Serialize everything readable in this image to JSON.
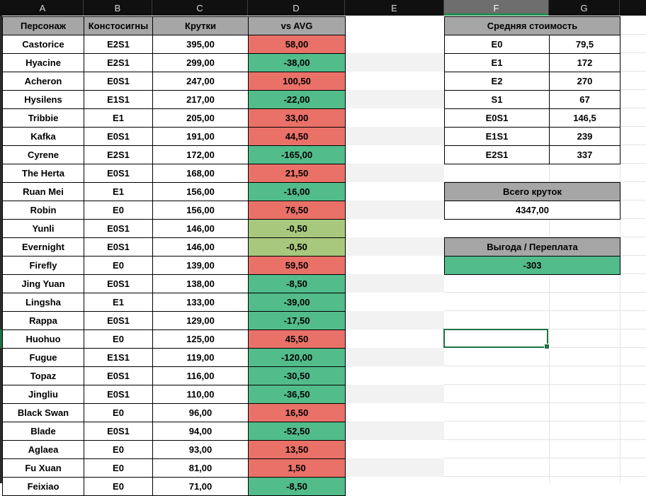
{
  "sheet": {
    "column_headers": [
      "A",
      "B",
      "C",
      "D",
      "E",
      "F",
      "G"
    ],
    "selected_column": "F",
    "selected_cell": "F18"
  },
  "main_table": {
    "headers": [
      "Персонаж",
      "Констосигны",
      "Крутки",
      "vs AVG"
    ],
    "rows": [
      {
        "name": "Castorice",
        "const": "E2S1",
        "pulls": "395,00",
        "vs_avg": "58,00",
        "color": "red"
      },
      {
        "name": "Hyacine",
        "const": "E2S1",
        "pulls": "299,00",
        "vs_avg": "-38,00",
        "color": "green"
      },
      {
        "name": "Acheron",
        "const": "E0S1",
        "pulls": "247,00",
        "vs_avg": "100,50",
        "color": "red"
      },
      {
        "name": "Hysilens",
        "const": "E1S1",
        "pulls": "217,00",
        "vs_avg": "-22,00",
        "color": "green"
      },
      {
        "name": "Tribbie",
        "const": "E1",
        "pulls": "205,00",
        "vs_avg": "33,00",
        "color": "red"
      },
      {
        "name": "Kafka",
        "const": "E0S1",
        "pulls": "191,00",
        "vs_avg": "44,50",
        "color": "red"
      },
      {
        "name": "Cyrene",
        "const": "E2S1",
        "pulls": "172,00",
        "vs_avg": "-165,00",
        "color": "green"
      },
      {
        "name": "The Herta",
        "const": "E0S1",
        "pulls": "168,00",
        "vs_avg": "21,50",
        "color": "red"
      },
      {
        "name": "Ruan Mei",
        "const": "E1",
        "pulls": "156,00",
        "vs_avg": "-16,00",
        "color": "green"
      },
      {
        "name": "Robin",
        "const": "E0",
        "pulls": "156,00",
        "vs_avg": "76,50",
        "color": "red"
      },
      {
        "name": "Yunli",
        "const": "E0S1",
        "pulls": "146,00",
        "vs_avg": "-0,50",
        "color": "lightgreen"
      },
      {
        "name": "Evernight",
        "const": "E0S1",
        "pulls": "146,00",
        "vs_avg": "-0,50",
        "color": "lightgreen"
      },
      {
        "name": "Firefly",
        "const": "E0",
        "pulls": "139,00",
        "vs_avg": "59,50",
        "color": "red"
      },
      {
        "name": "Jing Yuan",
        "const": "E0S1",
        "pulls": "138,00",
        "vs_avg": "-8,50",
        "color": "green"
      },
      {
        "name": "Lingsha",
        "const": "E1",
        "pulls": "133,00",
        "vs_avg": "-39,00",
        "color": "green"
      },
      {
        "name": "Rappa",
        "const": "E0S1",
        "pulls": "129,00",
        "vs_avg": "-17,50",
        "color": "green"
      },
      {
        "name": "Huohuo",
        "const": "E0",
        "pulls": "125,00",
        "vs_avg": "45,50",
        "color": "red"
      },
      {
        "name": "Fugue",
        "const": "E1S1",
        "pulls": "119,00",
        "vs_avg": "-120,00",
        "color": "green"
      },
      {
        "name": "Topaz",
        "const": "E0S1",
        "pulls": "116,00",
        "vs_avg": "-30,50",
        "color": "green"
      },
      {
        "name": "Jingliu",
        "const": "E0S1",
        "pulls": "110,00",
        "vs_avg": "-36,50",
        "color": "green"
      },
      {
        "name": "Black Swan",
        "const": "E0",
        "pulls": "96,00",
        "vs_avg": "16,50",
        "color": "red"
      },
      {
        "name": "Blade",
        "const": "E0S1",
        "pulls": "94,00",
        "vs_avg": "-52,50",
        "color": "green"
      },
      {
        "name": "Aglaea",
        "const": "E0",
        "pulls": "93,00",
        "vs_avg": "13,50",
        "color": "red"
      },
      {
        "name": "Fu Xuan",
        "const": "E0",
        "pulls": "81,00",
        "vs_avg": "1,50",
        "color": "red"
      },
      {
        "name": "Feixiao",
        "const": "E0",
        "pulls": "71,00",
        "vs_avg": "-8,50",
        "color": "green"
      }
    ]
  },
  "avg_cost_table": {
    "title": "Средняя стоимость",
    "rows": [
      {
        "label": "E0",
        "value": "79,5"
      },
      {
        "label": "E1",
        "value": "172"
      },
      {
        "label": "E2",
        "value": "270"
      },
      {
        "label": "S1",
        "value": "67"
      },
      {
        "label": "E0S1",
        "value": "146,5"
      },
      {
        "label": "E1S1",
        "value": "239"
      },
      {
        "label": "E2S1",
        "value": "337"
      }
    ]
  },
  "total_block": {
    "title": "Всего круток",
    "value": "4347,00"
  },
  "profit_block": {
    "title": "Выгода / Переплата",
    "value": "-303"
  },
  "colors": {
    "red": "#E97168",
    "green": "#52BC8B",
    "lightgreen": "#A8C87D",
    "header_gray": "#A6A6A6",
    "accent_green": "#1E7145",
    "stripe_gray": "#F2F2F2"
  }
}
